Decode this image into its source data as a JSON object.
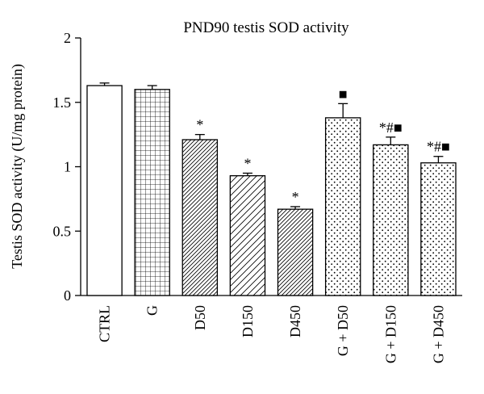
{
  "chart_data": {
    "type": "bar",
    "title": "PND90 testis SOD activity",
    "xlabel": "",
    "ylabel": "Testis SOD activity (U/mg protein)",
    "ylim": [
      0,
      2
    ],
    "yticks": [
      0,
      0.5,
      1,
      1.5,
      2
    ],
    "ytick_labels": [
      "0",
      "0.5",
      "1",
      "1.5",
      "2"
    ],
    "categories": [
      "CTRL",
      "G",
      "D50",
      "D150",
      "D450",
      "G + D50",
      "G + D150",
      "G + D450"
    ],
    "values": [
      1.63,
      1.6,
      1.21,
      0.93,
      0.67,
      1.38,
      1.17,
      1.03
    ],
    "errors": [
      0.02,
      0.03,
      0.04,
      0.02,
      0.02,
      0.11,
      0.06,
      0.05
    ],
    "patterns": [
      "none",
      "grid",
      "diag-dense",
      "diag-sparse",
      "diag-dense",
      "dots",
      "dots",
      "dots"
    ],
    "annotations": [
      "",
      "",
      "*",
      "*",
      "*",
      "■",
      "*#■",
      "*#■"
    ],
    "grid": false,
    "legend": "none"
  }
}
